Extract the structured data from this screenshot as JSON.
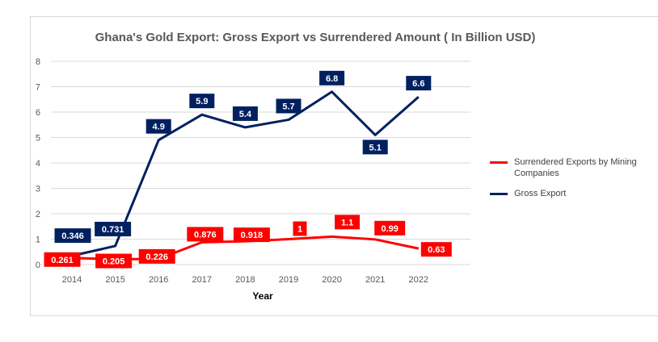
{
  "chart_data": {
    "type": "line",
    "title": "Ghana's Gold Export: Gross Export vs Surrendered Amount ( In Billion USD)",
    "xlabel": "Year",
    "ylabel": "",
    "categories": [
      "2014",
      "2015",
      "2016",
      "2017",
      "2018",
      "2019",
      "2020",
      "2021",
      "2022"
    ],
    "ylim": [
      0,
      8
    ],
    "yticks": [
      "0",
      "1",
      "2",
      "3",
      "4",
      "5",
      "6",
      "7",
      "8"
    ],
    "grid": true,
    "legend_position": "right",
    "series": [
      {
        "name": "Surrendered Exports by Mining Companies",
        "color": "#ff0000",
        "values": [
          0.261,
          0.205,
          0.226,
          0.876,
          0.918,
          1,
          1.1,
          0.99,
          0.63
        ],
        "labels": [
          "0.261",
          "0.205",
          "0.226",
          "0.876",
          "0.918",
          "1",
          "1.1",
          "0.99",
          "0.63"
        ]
      },
      {
        "name": "Gross Export",
        "color": "#002060",
        "values": [
          0.346,
          0.731,
          4.9,
          5.9,
          5.4,
          5.7,
          6.8,
          5.1,
          6.6
        ],
        "labels": [
          "0.346",
          "0.731",
          "4.9",
          "5.9",
          "5.4",
          "5.7",
          "6.8",
          "5.1",
          "6.6"
        ]
      }
    ]
  }
}
